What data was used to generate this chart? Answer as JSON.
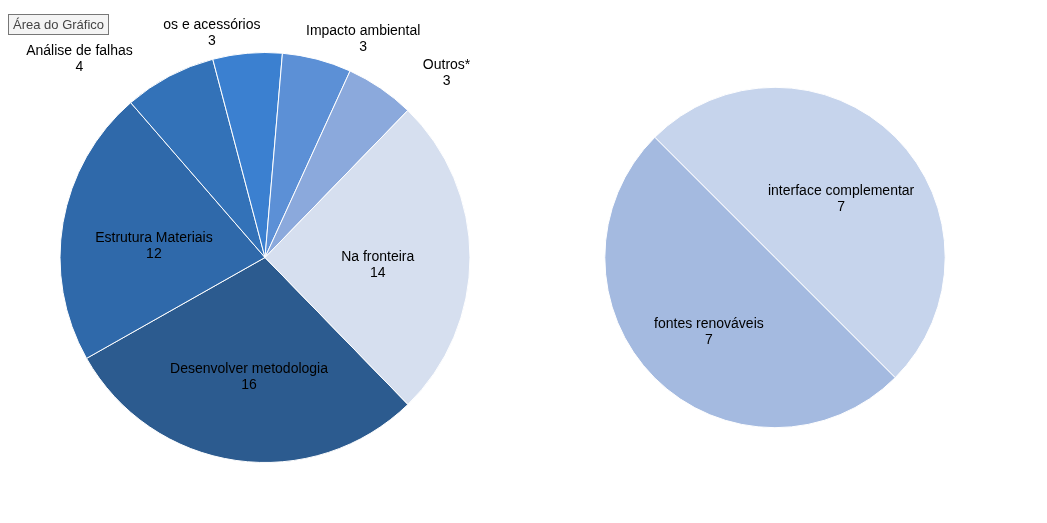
{
  "chart_data": [
    {
      "type": "pie",
      "categories": [
        "Desenvolver metodologia",
        "Estrutura  Materiais",
        "Análise de falhas",
        "os e acessórios",
        "Impacto  ambiental",
        "Outros*",
        "Na fronteira"
      ],
      "values": [
        16,
        12,
        4,
        3,
        3,
        3,
        14
      ],
      "colors": [
        "#2c5b8f",
        "#2f69aa",
        "#3372b8",
        "#3b80d0",
        "#5c90d6",
        "#8ba9dc",
        "#d6dfef"
      ],
      "data_labels": true,
      "legend": false,
      "annotations": [
        "Área do Gráfico"
      ]
    },
    {
      "type": "pie",
      "categories": [
        "interface complementar",
        "fontes renováveis"
      ],
      "values": [
        7,
        7
      ],
      "colors": [
        "#c6d4ec",
        "#a4bae0"
      ],
      "data_labels": true,
      "legend": false
    }
  ]
}
